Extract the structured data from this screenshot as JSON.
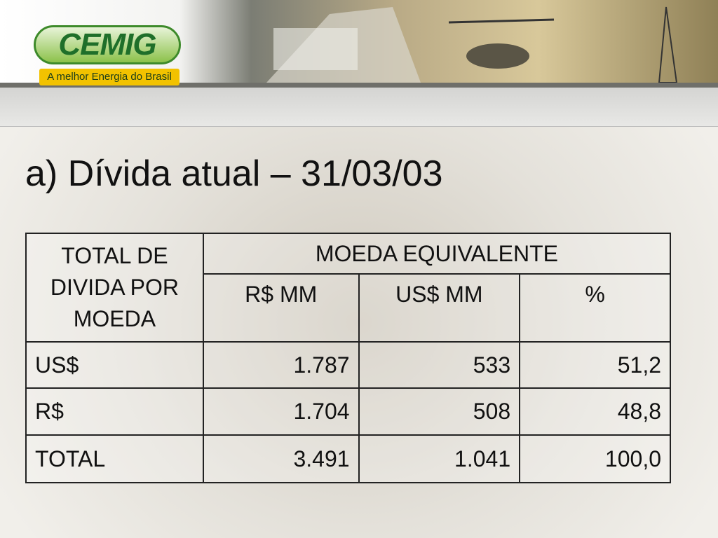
{
  "header": {
    "logo": "CEMIG",
    "tagline": "A melhor Energia do Brasil"
  },
  "title": "a) Dívida atual – 31/03/03",
  "table": {
    "corner": "TOTAL DE DIVIDA POR MOEDA",
    "group": "MOEDA EQUIVALENTE",
    "columns": [
      "R$ MM",
      "US$ MM",
      "%"
    ],
    "rows": [
      [
        "US$",
        "1.787",
        "533",
        "51,2"
      ],
      [
        "R$",
        "1.704",
        "508",
        "48,8"
      ],
      [
        "TOTAL",
        "3.491",
        "1.041",
        "100,0"
      ]
    ]
  }
}
